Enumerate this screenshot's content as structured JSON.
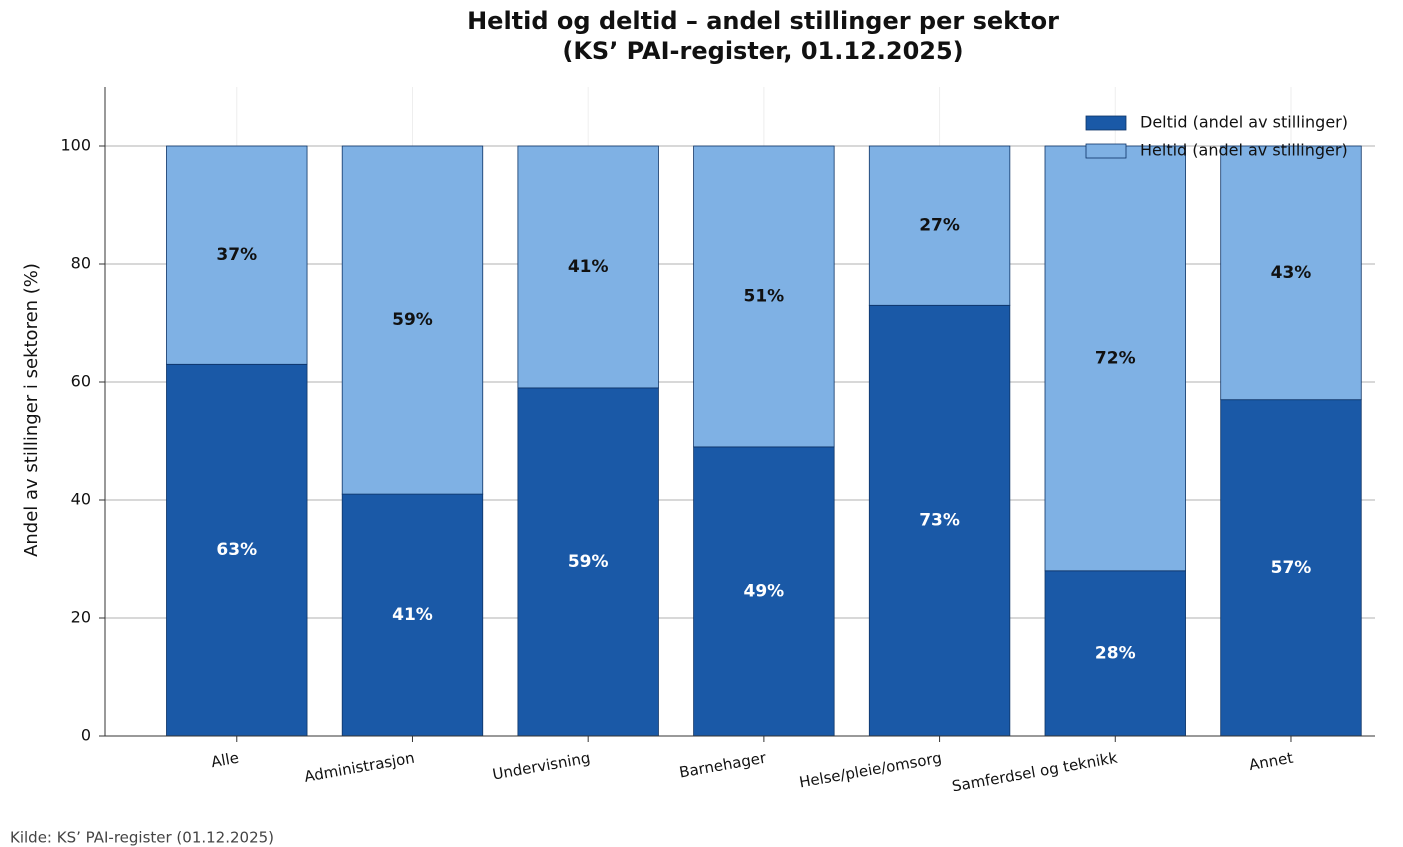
{
  "chart_data": {
    "type": "stacked_bar",
    "title": "Heltid og deltid – andel stillinger per sektor",
    "subtitle": "(KS’ PAI-register, 01.12.2025)",
    "y_label": "Andel av stillinger i sektoren (%)",
    "source": "Kilde: KS’ PAI-register (01.12.2025)",
    "categories": [
      "Alle",
      "Administrasjon",
      "Undervisning",
      "Barnehager",
      "Helse/pleie/omsorg",
      "Samferdsel og teknikk",
      "Annet"
    ],
    "series": [
      {
        "name": "Deltid (andel av stillinger)",
        "color": "#1a59a7",
        "values": [
          63,
          41,
          59,
          49,
          73,
          28,
          57
        ],
        "value_labels": [
          "63%",
          "41%",
          "59%",
          "49%",
          "73%",
          "28%",
          "57%"
        ]
      },
      {
        "name": "Heltid (andel av stillinger)",
        "color": "#7fb1e4",
        "values": [
          37,
          59,
          41,
          51,
          27,
          72,
          43
        ],
        "value_labels": [
          "37%",
          "59%",
          "41%",
          "51%",
          "27%",
          "72%",
          "43%"
        ]
      }
    ],
    "ylim": [
      0,
      110
    ],
    "yticks": [
      0,
      20,
      40,
      60,
      80,
      100
    ],
    "grid": true,
    "legend": "upper right"
  }
}
